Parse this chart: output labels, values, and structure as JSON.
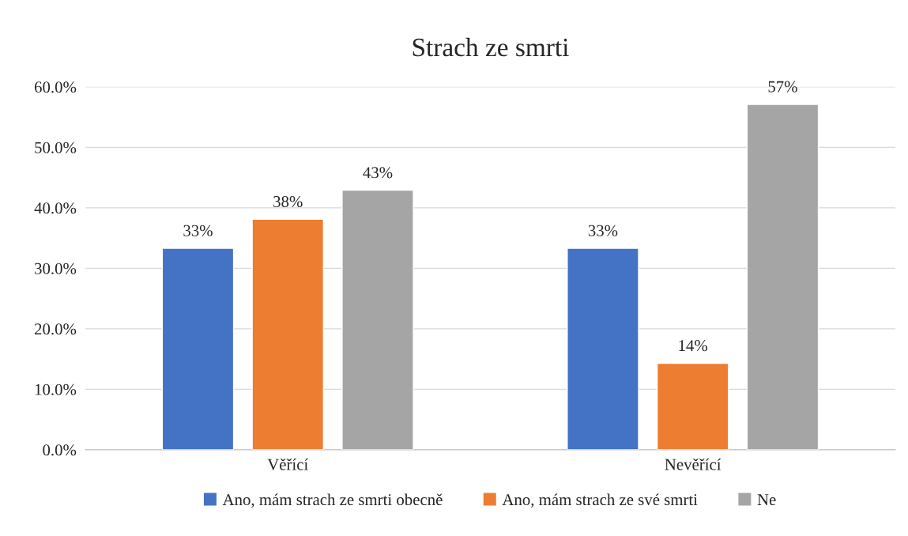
{
  "chart_data": {
    "type": "bar",
    "title": "Strach ze smrti",
    "categories": [
      "Věřící",
      "Nevěřící"
    ],
    "series": [
      {
        "name": "Ano, mám strach ze smrti obecně",
        "color": "#4472c4",
        "values": [
          33.3,
          33.3
        ],
        "value_labels": [
          "33%",
          "33%"
        ]
      },
      {
        "name": "Ano, mám strach ze své smrti",
        "color": "#ed7d31",
        "values": [
          38.1,
          14.3
        ],
        "value_labels": [
          "38%",
          "14%"
        ]
      },
      {
        "name": "Ne",
        "color": "#a5a5a5",
        "values": [
          42.9,
          57.1
        ],
        "value_labels": [
          "43%",
          "57%"
        ]
      }
    ],
    "ylim": [
      0,
      60
    ],
    "yticks": [
      {
        "value": 0,
        "label": "0.0%"
      },
      {
        "value": 10,
        "label": "10.0%"
      },
      {
        "value": 20,
        "label": "20.0%"
      },
      {
        "value": 30,
        "label": "30.0%"
      },
      {
        "value": 40,
        "label": "40.0%"
      },
      {
        "value": 50,
        "label": "50.0%"
      },
      {
        "value": 60,
        "label": "60.0%"
      }
    ],
    "grid": "y",
    "legend": "bottom"
  }
}
